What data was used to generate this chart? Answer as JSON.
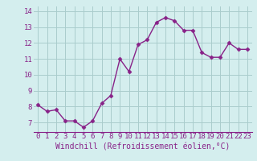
{
  "x": [
    0,
    1,
    2,
    3,
    4,
    5,
    6,
    7,
    8,
    9,
    10,
    11,
    12,
    13,
    14,
    15,
    16,
    17,
    18,
    19,
    20,
    21,
    22,
    23
  ],
  "y": [
    8.1,
    7.7,
    7.8,
    7.1,
    7.1,
    6.7,
    7.1,
    8.2,
    8.7,
    11.0,
    10.2,
    11.9,
    12.2,
    13.3,
    13.6,
    13.4,
    12.8,
    12.8,
    11.4,
    11.1,
    11.1,
    12.0,
    11.6,
    11.6
  ],
  "line_color": "#882288",
  "marker": "D",
  "markersize": 2.5,
  "linewidth": 1.0,
  "xlabel": "Windchill (Refroidissement éolien,°C)",
  "xlabel_fontsize": 7,
  "xtick_labels": [
    "0",
    "1",
    "2",
    "3",
    "4",
    "5",
    "6",
    "7",
    "8",
    "9",
    "10",
    "11",
    "12",
    "13",
    "14",
    "15",
    "16",
    "17",
    "18",
    "19",
    "20",
    "21",
    "22",
    "23"
  ],
  "xticks": [
    0,
    1,
    2,
    3,
    4,
    5,
    6,
    7,
    8,
    9,
    10,
    11,
    12,
    13,
    14,
    15,
    16,
    17,
    18,
    19,
    20,
    21,
    22,
    23
  ],
  "yticks": [
    7,
    8,
    9,
    10,
    11,
    12,
    13,
    14
  ],
  "ytick_labels": [
    "7",
    "8",
    "9",
    "10",
    "11",
    "12",
    "13",
    "14"
  ],
  "ylim": [
    6.4,
    14.3
  ],
  "xlim": [
    -0.5,
    23.5
  ],
  "grid_color": "#aacccc",
  "bg_color": "#d4eeee",
  "tick_fontsize": 6.5
}
